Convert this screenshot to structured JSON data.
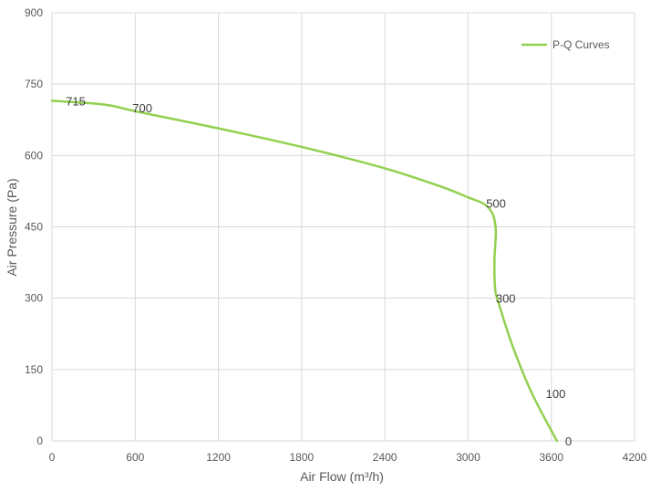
{
  "chart_data": {
    "type": "line",
    "xlabel": "Air Flow  (m³/h)",
    "ylabel": "Air Pressure  (Pa)",
    "xlim": [
      0,
      4200
    ],
    "ylim": [
      0,
      900
    ],
    "x_ticks": [
      "0",
      "600",
      "1200",
      "1800",
      "2400",
      "3000",
      "3600",
      "4200"
    ],
    "y_ticks": [
      "0",
      "150",
      "300",
      "450",
      "600",
      "750",
      "900"
    ],
    "grid": true,
    "legend_position": "top-right",
    "series": [
      {
        "name": "P-Q Curves",
        "color": "#92d050",
        "points": [
          {
            "x": 0,
            "y": 715
          },
          {
            "x": 380,
            "y": 707
          },
          {
            "x": 600,
            "y": 693
          },
          {
            "x": 1200,
            "y": 657
          },
          {
            "x": 1800,
            "y": 618
          },
          {
            "x": 2400,
            "y": 573
          },
          {
            "x": 2800,
            "y": 535
          },
          {
            "x": 3000,
            "y": 512
          },
          {
            "x": 3120,
            "y": 497
          },
          {
            "x": 3180,
            "y": 475
          },
          {
            "x": 3200,
            "y": 440
          },
          {
            "x": 3190,
            "y": 380
          },
          {
            "x": 3195,
            "y": 320
          },
          {
            "x": 3220,
            "y": 290
          },
          {
            "x": 3320,
            "y": 200
          },
          {
            "x": 3460,
            "y": 100
          },
          {
            "x": 3640,
            "y": 0
          }
        ]
      }
    ],
    "data_labels": [
      {
        "text": "715",
        "x": 100,
        "y": 715,
        "anchor": "start"
      },
      {
        "text": "700",
        "x": 580,
        "y": 700,
        "anchor": "start"
      },
      {
        "text": "500",
        "x": 3130,
        "y": 500,
        "anchor": "start"
      },
      {
        "text": "300",
        "x": 3200,
        "y": 300,
        "anchor": "start"
      },
      {
        "text": "100",
        "x": 3560,
        "y": 100,
        "anchor": "start"
      },
      {
        "text": "0",
        "x": 3700,
        "y": 0,
        "anchor": "start"
      }
    ]
  }
}
